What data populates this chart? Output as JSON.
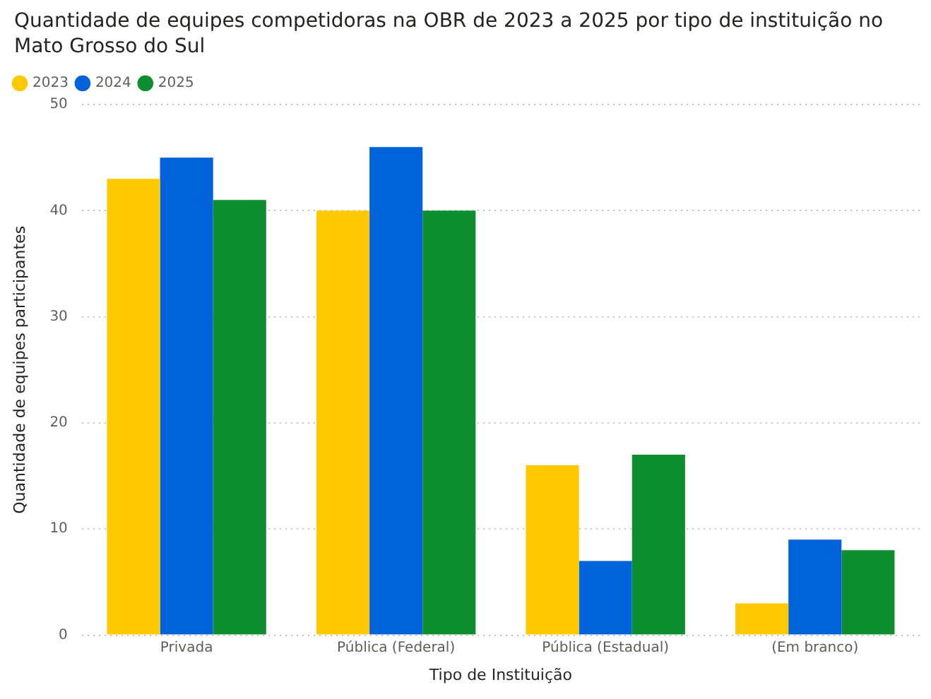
{
  "chart_data": {
    "type": "bar",
    "title": "Quantidade de equipes competidoras na OBR de 2023 a 2025 por tipo de instituição no Mato Grosso do Sul",
    "xlabel": "Tipo de Instituição",
    "ylabel": "Quantidade de equipes participantes",
    "categories": [
      "Privada",
      "Pública (Federal)",
      "Pública (Estadual)",
      "(Em branco)"
    ],
    "series": [
      {
        "name": "2023",
        "color": "#ffc900",
        "values": [
          43,
          40,
          16,
          3
        ]
      },
      {
        "name": "2024",
        "color": "#0063da",
        "values": [
          45,
          46,
          7,
          9
        ]
      },
      {
        "name": "2025",
        "color": "#0d8f2f",
        "values": [
          41,
          40,
          17,
          8
        ]
      }
    ],
    "ylim": [
      0,
      50
    ],
    "yticks": [
      0,
      10,
      20,
      30,
      40,
      50
    ],
    "grid": "y",
    "legend": "top left"
  }
}
